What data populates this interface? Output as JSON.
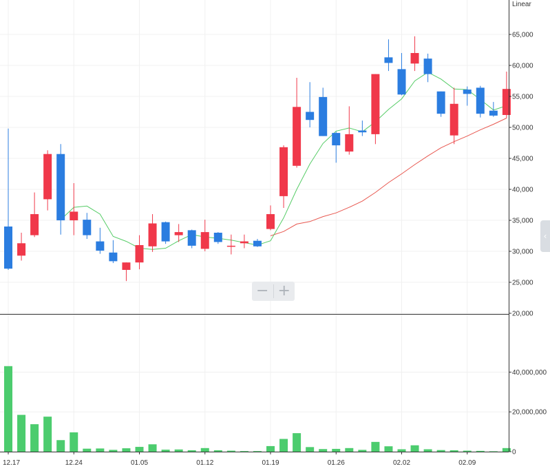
{
  "scale_mode": "Linear",
  "colors": {
    "up": "#f0384a",
    "down": "#2b7de0",
    "ma_short": "#55cc66",
    "ma_long": "#e8574f",
    "volume": "#4ccc6e",
    "grid": "#f0f0f0",
    "axis": "#333333"
  },
  "zoom": {
    "out_label": "−",
    "in_label": "+"
  },
  "side_tab_icon": "chevron-left-icon",
  "chart_data": {
    "type": "candlestick",
    "price_axis": {
      "min": 20000,
      "max": 65000,
      "ticks": [
        65000,
        60000,
        55000,
        50000,
        45000,
        40000,
        35000,
        30000,
        25000,
        20000
      ],
      "position": "right"
    },
    "volume_axis": {
      "min": 0,
      "max": 45000000,
      "ticks": [
        0,
        20000000,
        40000000
      ],
      "position": "right"
    },
    "x_tick_labels": [
      {
        "index": 0,
        "label": "12.17"
      },
      {
        "index": 5,
        "label": "12.24"
      },
      {
        "index": 10,
        "label": "01.05"
      },
      {
        "index": 15,
        "label": "01.12"
      },
      {
        "index": 20,
        "label": "01.19"
      },
      {
        "index": 25,
        "label": "01.26"
      },
      {
        "index": 30,
        "label": "02.02"
      },
      {
        "index": 35,
        "label": "02.09"
      }
    ],
    "grid": true,
    "candles": [
      {
        "o": 34000,
        "h": 49800,
        "l": 27000,
        "c": 27200,
        "v": 43000000
      },
      {
        "o": 29300,
        "h": 33000,
        "l": 28500,
        "c": 31300,
        "v": 18500000
      },
      {
        "o": 32600,
        "h": 39500,
        "l": 32300,
        "c": 36000,
        "v": 13800000
      },
      {
        "o": 38400,
        "h": 46300,
        "l": 36600,
        "c": 45700,
        "v": 17600000
      },
      {
        "o": 45700,
        "h": 47300,
        "l": 32700,
        "c": 35000,
        "v": 5800000
      },
      {
        "o": 35000,
        "h": 41000,
        "l": 32600,
        "c": 36400,
        "v": 9700000
      },
      {
        "o": 35100,
        "h": 36200,
        "l": 32000,
        "c": 32600,
        "v": 1500000
      },
      {
        "o": 31600,
        "h": 33800,
        "l": 29600,
        "c": 30100,
        "v": 1600000
      },
      {
        "o": 29800,
        "h": 31800,
        "l": 28100,
        "c": 28400,
        "v": 900000
      },
      {
        "o": 27000,
        "h": 28200,
        "l": 25200,
        "c": 28200,
        "v": 1700000
      },
      {
        "o": 28200,
        "h": 32600,
        "l": 27100,
        "c": 31000,
        "v": 2400000
      },
      {
        "o": 30800,
        "h": 36000,
        "l": 29900,
        "c": 34500,
        "v": 3700000
      },
      {
        "o": 34700,
        "h": 34800,
        "l": 31200,
        "c": 31600,
        "v": 1000000
      },
      {
        "o": 32600,
        "h": 34400,
        "l": 31500,
        "c": 33100,
        "v": 1100000
      },
      {
        "o": 33400,
        "h": 33500,
        "l": 30500,
        "c": 30900,
        "v": 700000
      },
      {
        "o": 30400,
        "h": 35100,
        "l": 30000,
        "c": 33100,
        "v": 1800000
      },
      {
        "o": 33000,
        "h": 33100,
        "l": 31200,
        "c": 31500,
        "v": 700000
      },
      {
        "o": 30800,
        "h": 32700,
        "l": 29500,
        "c": 30900,
        "v": 500000
      },
      {
        "o": 31300,
        "h": 32700,
        "l": 30500,
        "c": 31600,
        "v": 300000
      },
      {
        "o": 31700,
        "h": 32000,
        "l": 30700,
        "c": 30800,
        "v": 300000
      },
      {
        "o": 33600,
        "h": 37400,
        "l": 33400,
        "c": 36000,
        "v": 2800000
      },
      {
        "o": 38900,
        "h": 47100,
        "l": 37000,
        "c": 46800,
        "v": 6400000
      },
      {
        "o": 43800,
        "h": 58000,
        "l": 43500,
        "c": 53300,
        "v": 9300000
      },
      {
        "o": 52500,
        "h": 57300,
        "l": 50000,
        "c": 51200,
        "v": 2300000
      },
      {
        "o": 54900,
        "h": 56400,
        "l": 48600,
        "c": 48600,
        "v": 1300000
      },
      {
        "o": 49100,
        "h": 49300,
        "l": 44300,
        "c": 47100,
        "v": 1400000
      },
      {
        "o": 46100,
        "h": 53400,
        "l": 45600,
        "c": 48900,
        "v": 1800000
      },
      {
        "o": 49500,
        "h": 51100,
        "l": 48600,
        "c": 49200,
        "v": 900000
      },
      {
        "o": 48900,
        "h": 58600,
        "l": 47300,
        "c": 58600,
        "v": 4900000
      },
      {
        "o": 61300,
        "h": 64200,
        "l": 59100,
        "c": 60400,
        "v": 2700000
      },
      {
        "o": 59400,
        "h": 62000,
        "l": 55200,
        "c": 55300,
        "v": 1200000
      },
      {
        "o": 60300,
        "h": 64700,
        "l": 59100,
        "c": 62000,
        "v": 3200000
      },
      {
        "o": 61100,
        "h": 61900,
        "l": 57300,
        "c": 58600,
        "v": 1200000
      },
      {
        "o": 55800,
        "h": 55800,
        "l": 51700,
        "c": 52200,
        "v": 800000
      },
      {
        "o": 48700,
        "h": 56400,
        "l": 47300,
        "c": 53800,
        "v": 700000
      },
      {
        "o": 56100,
        "h": 56600,
        "l": 53500,
        "c": 55400,
        "v": 500000
      },
      {
        "o": 56400,
        "h": 56700,
        "l": 51600,
        "c": 52200,
        "v": 400000
      },
      {
        "o": 52700,
        "h": 54100,
        "l": 51700,
        "c": 51900,
        "v": 200000
      },
      {
        "o": 52000,
        "h": 59000,
        "l": 51500,
        "c": 56200,
        "v": 1800000
      }
    ],
    "ma_short": [
      null,
      null,
      null,
      null,
      35100,
      37100,
      37300,
      36000,
      32400,
      31600,
      30500,
      30300,
      30500,
      31700,
      32700,
      32300,
      32100,
      31800,
      31400,
      31000,
      31700,
      35400,
      40000,
      44100,
      47400,
      49400,
      49900,
      49300,
      50900,
      52900,
      54600,
      57500,
      58900,
      57800,
      56200,
      56100,
      54500,
      52800,
      53500
    ],
    "ma_long": [
      null,
      null,
      null,
      null,
      null,
      null,
      null,
      null,
      null,
      null,
      null,
      null,
      null,
      null,
      null,
      null,
      null,
      null,
      null,
      null,
      32500,
      33200,
      34400,
      34800,
      35600,
      36200,
      37100,
      38100,
      39500,
      41100,
      42500,
      44000,
      45400,
      46700,
      47700,
      48600,
      49600,
      50500,
      51500
    ]
  }
}
